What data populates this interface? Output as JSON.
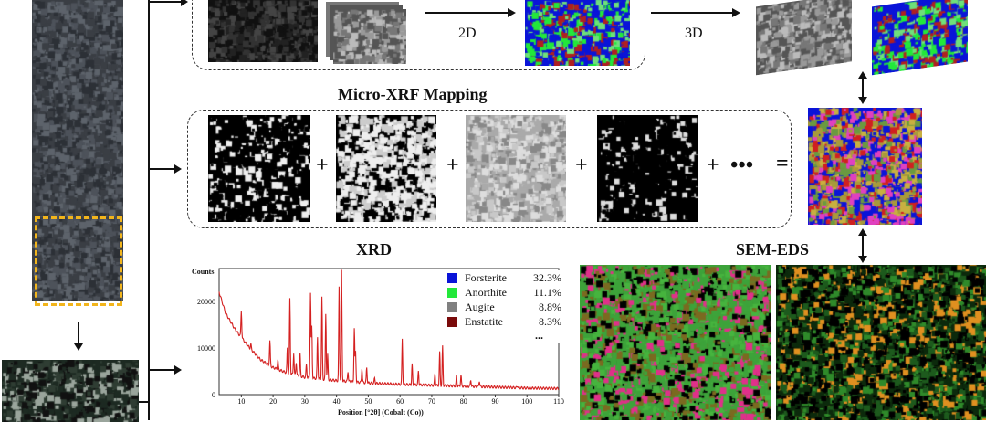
{
  "sections": {
    "ct_2d_label": "2D",
    "ct_3d_label": "3D",
    "xrf_title": "Micro-XRF Mapping",
    "xrf_plus": "+",
    "xrf_more": "•••",
    "xrf_equals": "=",
    "xrd_title": "XRD",
    "sem_title": "SEM-EDS"
  },
  "colors": {
    "forsterite": "#0a14d8",
    "anorthite": "#22e83a",
    "augite": "#808080",
    "enstatite": "#7a0a0a",
    "highlight_box": "#f2b51c",
    "xrd_line": "#d42020"
  },
  "chart_data": {
    "type": "line",
    "ylabel": "Counts",
    "xlabel": "Position [°2θ] (Cobalt (Co))",
    "xlim": [
      3,
      110
    ],
    "ylim": [
      0,
      27000
    ],
    "xticks": [
      "10",
      "20",
      "30",
      "40",
      "50",
      "60",
      "70",
      "80",
      "90",
      "100",
      "110"
    ],
    "yticks": [
      "0",
      "10000",
      "20000"
    ],
    "background_curve": [
      [
        3,
        22000
      ],
      [
        5,
        17500
      ],
      [
        8,
        14000
      ],
      [
        12,
        10500
      ],
      [
        16,
        7500
      ],
      [
        20,
        5800
      ],
      [
        25,
        4500
      ],
      [
        30,
        3700
      ],
      [
        40,
        3000
      ],
      [
        50,
        2500
      ],
      [
        60,
        2200
      ],
      [
        70,
        2000
      ],
      [
        80,
        1800
      ],
      [
        90,
        1600
      ],
      [
        100,
        1400
      ],
      [
        110,
        1300
      ]
    ],
    "peaks": [
      [
        10,
        18000
      ],
      [
        13,
        10800
      ],
      [
        19,
        11500
      ],
      [
        21.5,
        7500
      ],
      [
        24.5,
        10000
      ],
      [
        25.3,
        20500
      ],
      [
        26.5,
        9000
      ],
      [
        27.3,
        7000
      ],
      [
        28.5,
        8800
      ],
      [
        30.5,
        6500
      ],
      [
        31.8,
        21800
      ],
      [
        32.2,
        14500
      ],
      [
        34,
        12300
      ],
      [
        35.4,
        20800
      ],
      [
        36.6,
        17300
      ],
      [
        37.2,
        8500
      ],
      [
        40.8,
        23000
      ],
      [
        41.6,
        26500
      ],
      [
        43.6,
        5000
      ],
      [
        45.6,
        14200
      ],
      [
        46,
        9200
      ],
      [
        48,
        5700
      ],
      [
        49.5,
        5800
      ],
      [
        52,
        3500
      ],
      [
        60.7,
        12000
      ],
      [
        63.8,
        6500
      ],
      [
        65.8,
        5000
      ],
      [
        71,
        4500
      ],
      [
        72.5,
        9000
      ],
      [
        73.4,
        10300
      ],
      [
        77.8,
        4000
      ],
      [
        79.2,
        4200
      ],
      [
        82.3,
        3200
      ],
      [
        85,
        3000
      ],
      [
        97,
        1900
      ]
    ],
    "legend": [
      {
        "name": "Forsterite",
        "value": "32.3%",
        "color": "#0a14d8"
      },
      {
        "name": "Anorthite",
        "value": "11.1%",
        "color": "#22e83a"
      },
      {
        "name": "Augite",
        "value": "8.8%",
        "color": "#808080"
      },
      {
        "name": "Enstatite",
        "value": "8.3%",
        "color": "#7a0a0a"
      }
    ],
    "legend_more": "...",
    "legend_position": "top-right",
    "grid": false
  }
}
